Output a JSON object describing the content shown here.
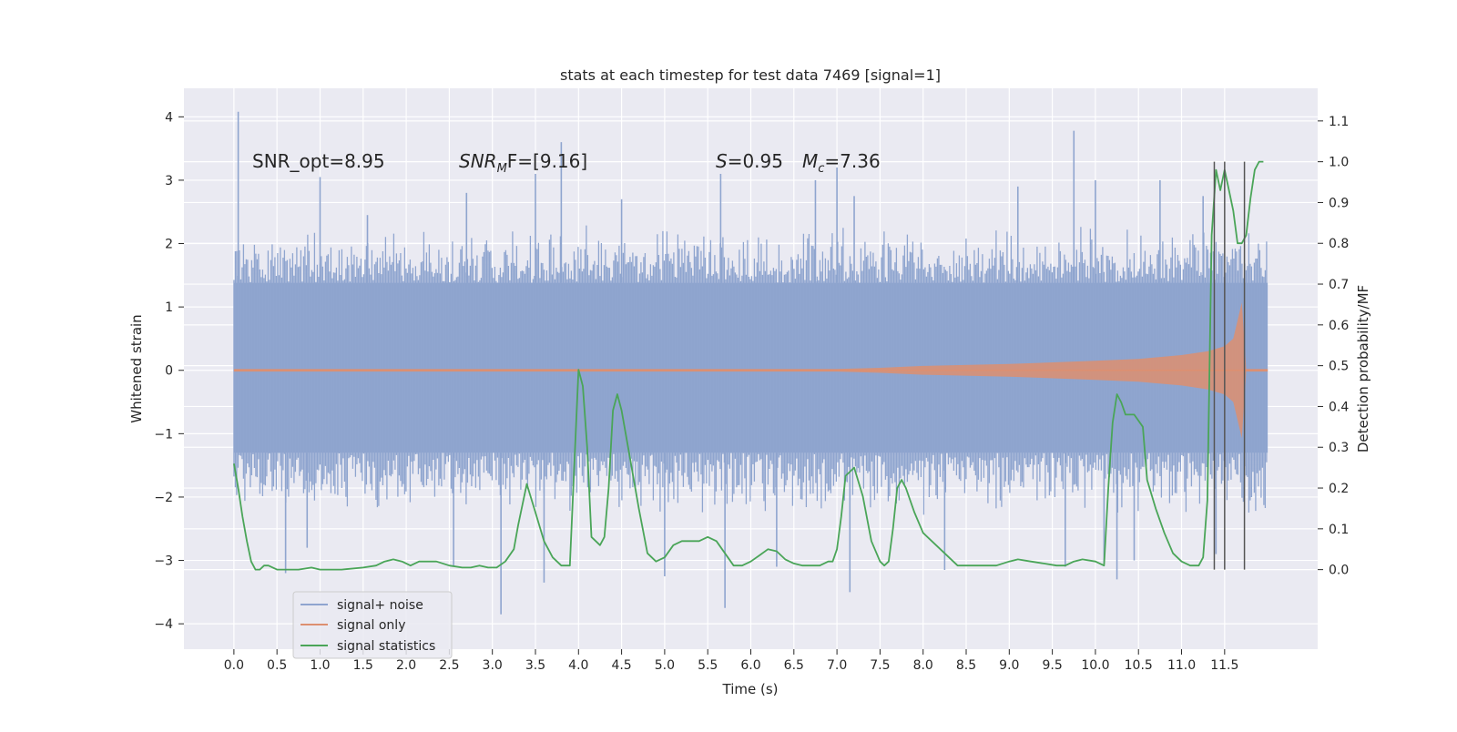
{
  "chart_data": {
    "type": "line",
    "title": "stats at each timestep for test data 7469 [signal=1]",
    "xlabel": "Time (s)",
    "ylabel_left": "Whitened strain",
    "ylabel_right": "Detection probability/MF",
    "xlim": [
      -0.58,
      12.58
    ],
    "ylim_left": [
      -4.4,
      4.45
    ],
    "ylim_right": [
      -0.195,
      1.18
    ],
    "xticks": [
      "0.0",
      "0.5",
      "1.0",
      "1.5",
      "2.0",
      "2.5",
      "3.0",
      "3.5",
      "4.0",
      "4.5",
      "5.0",
      "5.5",
      "6.0",
      "6.5",
      "7.0",
      "7.5",
      "8.0",
      "8.5",
      "9.0",
      "9.5",
      "10.0",
      "10.5",
      "11.0",
      "11.5"
    ],
    "yticks_left": [
      "4",
      "3",
      "2",
      "1",
      "0",
      "−1",
      "−2",
      "−3",
      "−4"
    ],
    "yticks_right": [
      "1.1",
      "1.0",
      "0.9",
      "0.8",
      "0.7",
      "0.6",
      "0.5",
      "0.4",
      "0.3",
      "0.2",
      "0.1",
      "0.0"
    ],
    "annotations": [
      {
        "text": "SNR_opt=8.95"
      },
      {
        "text": "SNR",
        "sub": "M",
        "tail": "F=[9.16]"
      },
      {
        "text": "S",
        "tail": "=0.95"
      },
      {
        "text": "M",
        "sub": "c",
        "tail": "=7.36"
      }
    ],
    "grid": true,
    "legend_position": "lower-left",
    "legend": [
      {
        "label": "signal+ noise",
        "color": "#8fa5cf"
      },
      {
        "label": "signal only",
        "color": "#dd8f70"
      },
      {
        "label": "signal statistics",
        "color": "#4aa558"
      }
    ],
    "colors": {
      "background": "#eaeaf2",
      "grid": "#ffffff",
      "noise": "#8fa5cf",
      "signal": "#dd8f70",
      "stats": "#4aa558",
      "vlines": "#555555"
    },
    "series": [
      {
        "name": "signal+ noise",
        "axis": "left",
        "band_core": [
          -1.3,
          1.38
        ],
        "band_envelope": [
          -2.3,
          2.3
        ],
        "spikes": [
          [
            0.05,
            4.08
          ],
          [
            1.0,
            3.05
          ],
          [
            1.55,
            2.45
          ],
          [
            2.7,
            2.8
          ],
          [
            3.5,
            3.1
          ],
          [
            3.8,
            3.6
          ],
          [
            4.5,
            2.7
          ],
          [
            5.65,
            3.1
          ],
          [
            6.75,
            3.0
          ],
          [
            7.0,
            3.2
          ],
          [
            7.2,
            2.75
          ],
          [
            9.1,
            2.9
          ],
          [
            9.75,
            3.78
          ],
          [
            10.0,
            3.0
          ],
          [
            10.75,
            3.0
          ],
          [
            11.25,
            2.75
          ],
          [
            0.6,
            -3.2
          ],
          [
            0.85,
            -2.8
          ],
          [
            2.55,
            -3.1
          ],
          [
            3.1,
            -3.85
          ],
          [
            3.6,
            -3.35
          ],
          [
            5.0,
            -3.25
          ],
          [
            5.7,
            -3.75
          ],
          [
            6.3,
            -3.1
          ],
          [
            7.15,
            -3.5
          ],
          [
            8.25,
            -3.15
          ],
          [
            9.65,
            -3.1
          ],
          [
            10.1,
            -3.05
          ],
          [
            10.25,
            -3.3
          ],
          [
            10.45,
            -3.0
          ],
          [
            11.4,
            -2.9
          ]
        ]
      },
      {
        "name": "signal only",
        "axis": "left",
        "envelope": {
          "t": [
            0.0,
            7.0,
            7.5,
            8.0,
            9.0,
            10.0,
            10.5,
            11.0,
            11.3,
            11.5,
            11.6,
            11.7,
            11.75,
            12.0
          ],
          "amp": [
            0.02,
            0.02,
            0.04,
            0.07,
            0.1,
            0.15,
            0.18,
            0.24,
            0.3,
            0.38,
            0.5,
            1.07,
            0.02,
            0.02
          ]
        }
      },
      {
        "name": "signal statistics",
        "axis": "right",
        "x": [
          0.0,
          0.05,
          0.1,
          0.15,
          0.2,
          0.25,
          0.3,
          0.35,
          0.4,
          0.5,
          0.6,
          0.75,
          0.9,
          1.0,
          1.1,
          1.25,
          1.5,
          1.65,
          1.75,
          1.85,
          1.95,
          2.05,
          2.15,
          2.25,
          2.35,
          2.5,
          2.65,
          2.75,
          2.85,
          2.95,
          3.05,
          3.15,
          3.25,
          3.3,
          3.35,
          3.4,
          3.5,
          3.6,
          3.7,
          3.8,
          3.9,
          4.0,
          4.05,
          4.1,
          4.15,
          4.2,
          4.25,
          4.3,
          4.35,
          4.4,
          4.45,
          4.5,
          4.6,
          4.7,
          4.8,
          4.9,
          5.0,
          5.1,
          5.2,
          5.3,
          5.4,
          5.5,
          5.6,
          5.7,
          5.8,
          5.9,
          6.0,
          6.1,
          6.2,
          6.3,
          6.4,
          6.5,
          6.6,
          6.7,
          6.8,
          6.9,
          6.95,
          7.0,
          7.05,
          7.1,
          7.2,
          7.3,
          7.4,
          7.5,
          7.55,
          7.6,
          7.65,
          7.7,
          7.75,
          7.8,
          7.85,
          7.9,
          8.0,
          8.2,
          8.4,
          8.55,
          8.7,
          8.85,
          9.0,
          9.1,
          9.25,
          9.4,
          9.55,
          9.65,
          9.75,
          9.85,
          10.0,
          10.1,
          10.15,
          10.2,
          10.25,
          10.3,
          10.35,
          10.45,
          10.55,
          10.6,
          10.7,
          10.8,
          10.9,
          11.0,
          11.1,
          11.2,
          11.25,
          11.3,
          11.35,
          11.4,
          11.45,
          11.5,
          11.55,
          11.6,
          11.65,
          11.7,
          11.75,
          11.8,
          11.85,
          11.9,
          11.95
        ],
        "y": [
          0.26,
          0.2,
          0.13,
          0.07,
          0.02,
          0.0,
          0.0,
          0.01,
          0.01,
          0.0,
          0.0,
          0.0,
          0.005,
          0.0,
          0.0,
          0.0,
          0.005,
          0.01,
          0.02,
          0.025,
          0.02,
          0.01,
          0.02,
          0.02,
          0.02,
          0.01,
          0.005,
          0.005,
          0.01,
          0.005,
          0.005,
          0.02,
          0.05,
          0.11,
          0.16,
          0.21,
          0.14,
          0.07,
          0.03,
          0.01,
          0.01,
          0.49,
          0.45,
          0.3,
          0.08,
          0.07,
          0.06,
          0.08,
          0.2,
          0.39,
          0.43,
          0.39,
          0.27,
          0.15,
          0.04,
          0.02,
          0.03,
          0.06,
          0.07,
          0.07,
          0.07,
          0.08,
          0.07,
          0.04,
          0.01,
          0.01,
          0.02,
          0.035,
          0.05,
          0.045,
          0.025,
          0.015,
          0.01,
          0.01,
          0.01,
          0.02,
          0.02,
          0.05,
          0.13,
          0.23,
          0.25,
          0.18,
          0.07,
          0.02,
          0.01,
          0.02,
          0.1,
          0.2,
          0.22,
          0.2,
          0.17,
          0.14,
          0.09,
          0.05,
          0.01,
          0.01,
          0.01,
          0.01,
          0.02,
          0.025,
          0.02,
          0.015,
          0.01,
          0.01,
          0.02,
          0.025,
          0.02,
          0.01,
          0.2,
          0.36,
          0.43,
          0.41,
          0.38,
          0.38,
          0.35,
          0.22,
          0.15,
          0.09,
          0.04,
          0.02,
          0.01,
          0.01,
          0.03,
          0.17,
          0.82,
          0.98,
          0.93,
          0.98,
          0.93,
          0.88,
          0.8,
          0.8,
          0.82,
          0.91,
          0.98,
          1.0,
          1.0
        ],
        "vlines": [
          11.38,
          11.5,
          11.73
        ]
      }
    ]
  }
}
